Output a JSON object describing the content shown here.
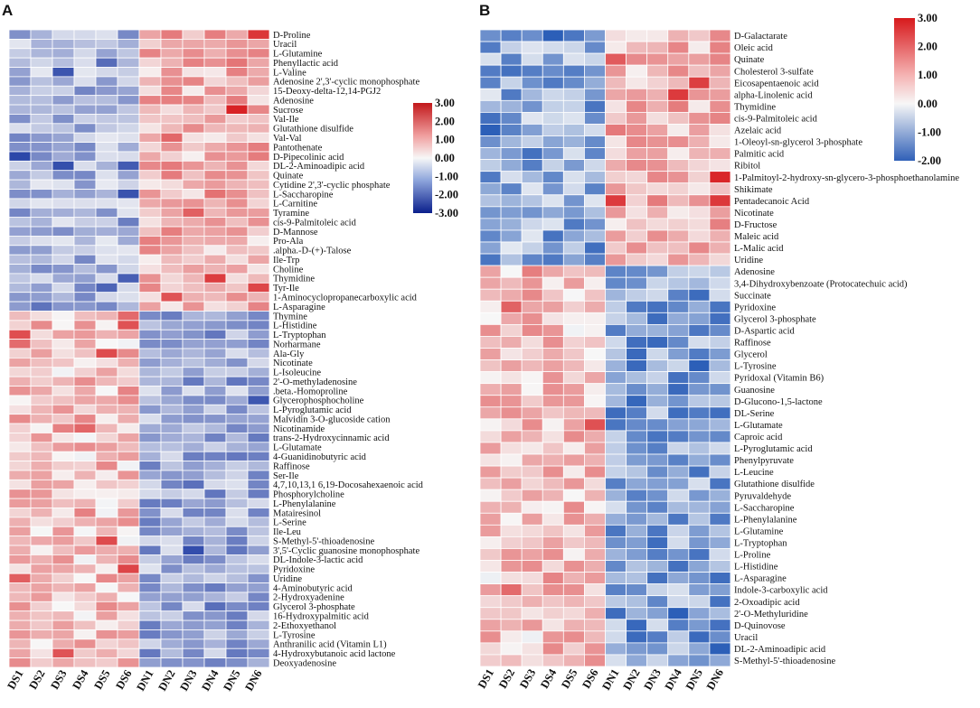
{
  "chart_data": [
    {
      "type": "heatmap",
      "panel": "A",
      "columns": [
        "DS1",
        "DS2",
        "DS3",
        "DS4",
        "DS5",
        "DS6",
        "DN1",
        "DN2",
        "DN3",
        "DN4",
        "DN5",
        "DN6"
      ],
      "rows": [
        "D-Proline",
        "Uracil",
        "L-Glutamine",
        "Phenyllactic acid",
        "L-Valine",
        "Adenosine 2',3'-cyclic monophosphate",
        "15-Deoxy-delta-12,14-PGJ2",
        "Adenosine",
        "Sucrose",
        "Val-Ile",
        "Glutathione disulfide",
        "Val-Val",
        "Pantothenate",
        "D-Pipecolinic acid",
        "DL-2-Aminoadipic acid",
        "Quinate",
        "Cytidine 2',3'-cyclic phosphate",
        "L-Saccharopine",
        "L-Carnitine",
        "Tyramine",
        "cis-9-Palmitoleic acid",
        "D-Mannose",
        "Pro-Ala",
        ".alpha.-D-(+)-Talose",
        "Ile-Trp",
        "Choline",
        "Thymidine",
        "Tyr-Ile",
        "1-Aminocyclopropanecarboxylic acid",
        "L-Asparagine",
        "Thymine",
        "L-Histidine",
        "L-Tryptophan",
        "Norharmane",
        "Ala-Gly",
        "Nicotinate",
        "L-Isoleucine",
        "2'-O-methyladenosine",
        ".beta.-Homoproline",
        "Glycerophosphocholine",
        "L-Pyroglutamic acid",
        "Malvidin 3-O-glucoside cation",
        "Nicotinamide",
        "trans-2-Hydroxycinnamic acid",
        "L-Glutamate",
        "4-Guanidinobutyric acid",
        "Raffinose",
        "Ser-Ile",
        "4,7,10,13,1 6,19-Docosahexaenoic acid",
        "Phosphorylcholine",
        "L-Phenylalanine",
        "Matairesinol",
        "L-Serine",
        "Ile-Leu",
        "S-Methyl-5'-thioadenosine",
        "3',5'-Cyclic guanosine monophosphate",
        "DL-Indole-3-lactic acid",
        "Pyridoxine",
        "Uridine",
        "4-Aminobutyric acid",
        "2-Hydroxyadenine",
        "Glycerol 3-phosphate",
        "16-Hydroxypalmitic acid",
        "2-Ethoxyethanol",
        "L-Tyrosine",
        "Anthranilic acid (Vitamin L1)",
        "4-Hydroxybutanoic acid lactone",
        "Deoxyadenosine"
      ],
      "split_after_row": 29,
      "legend": {
        "max_label": "3.00",
        "ticks": [
          "3.00",
          "2.00",
          "1.00",
          "0.00",
          "-1.00",
          "-2.00",
          "-3.00"
        ],
        "range": [
          -3,
          3
        ],
        "placement": "top-right-inner"
      },
      "colors": {
        "high": "#d7191c",
        "mid": "#f7f7f7",
        "low": "#0a2a9c"
      }
    },
    {
      "type": "heatmap",
      "panel": "B",
      "columns": [
        "DS1",
        "DS2",
        "DS3",
        "DS4",
        "DS5",
        "DS6",
        "DN1",
        "DN2",
        "DN3",
        "DN4",
        "DN5",
        "DN6"
      ],
      "rows": [
        "D-Galactarate",
        "Oleic acid",
        "Quinate",
        "Cholesterol 3-sulfate",
        "Eicosapentaenoic acid",
        "alpha-Linolenic acid",
        "Thymidine",
        "cis-9-Palmitoleic acid",
        "Azelaic acid",
        "1-Oleoyl-sn-glycerol 3-phosphate",
        "Palmitic acid",
        "Ribitol",
        "1-Palmitoyl-2-hydroxy-sn-glycero-3-phosphoethanolamine",
        "Shikimate",
        "Pentadecanoic Acid",
        "Nicotinate",
        "D-Fructose",
        "Maleic acid",
        "L-Malic acid",
        "Uridine",
        "Adenosine",
        "3,4-Dihydroxybenzoate (Protocatechuic acid)",
        "Succinate",
        "Pyridoxine",
        "Glycerol 3-phosphate",
        "D-Aspartic acid",
        "Raffinose",
        "Glycerol",
        "L-Tyrosine",
        "Pyridoxal (Vitamin B6)",
        "Guanosine",
        "D-Glucono-1,5-lactone",
        "DL-Serine",
        "L-Glutamate",
        "Caproic acid",
        "L-Pyroglutamic acid",
        "Phenylpyruvate",
        "L-Leucine",
        "Glutathione disulfide",
        "Pyruvaldehyde",
        "L-Saccharopine",
        "L-Phenylalanine",
        "L-Glutamine",
        "L-Tryptophan",
        "L-Proline",
        "L-Histidine",
        "L-Asparagine",
        "Indole-3-carboxylic acid",
        "2-Oxoadipic acid",
        "2'-O-Methyluridine",
        "D-Quinovose",
        "Uracil",
        "DL-2-Aminoadipic acid",
        "S-Methyl-5'-thioadenosine"
      ],
      "split_after_row": 19,
      "legend": {
        "max_label": "3.00",
        "ticks": [
          "3.00",
          "2.00",
          "1.00",
          "0.00",
          "-1.00",
          "-2.00"
        ],
        "range": [
          -2,
          3
        ],
        "placement": "top-right-inner"
      },
      "colors": {
        "high": "#d7191c",
        "mid": "#f7f7f7",
        "low": "#2c5fb8"
      }
    }
  ]
}
